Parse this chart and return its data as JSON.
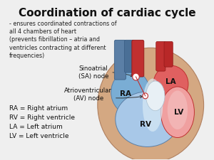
{
  "title": "Coordination of cardiac cycle",
  "subtitle_lines": [
    "- ensures coordinated contractions of",
    "all 4 chambers of heart",
    "(prevents fibrillation – atria and",
    "ventricles contracting at different",
    "frequencies)"
  ],
  "sa_label": "Sinoatrial\n(SA) node",
  "av_label": "Atrioventricular\n(AV) node",
  "legend_lines": [
    "RA = Right atrium",
    "RV = Right ventricle",
    "LA = Left atrium",
    "LV = Left ventricle"
  ],
  "bg_color": "#efefef",
  "title_fontsize": 11,
  "subtitle_fontsize": 5.8,
  "label_fontsize": 6.5,
  "annot_fontsize": 6.2
}
